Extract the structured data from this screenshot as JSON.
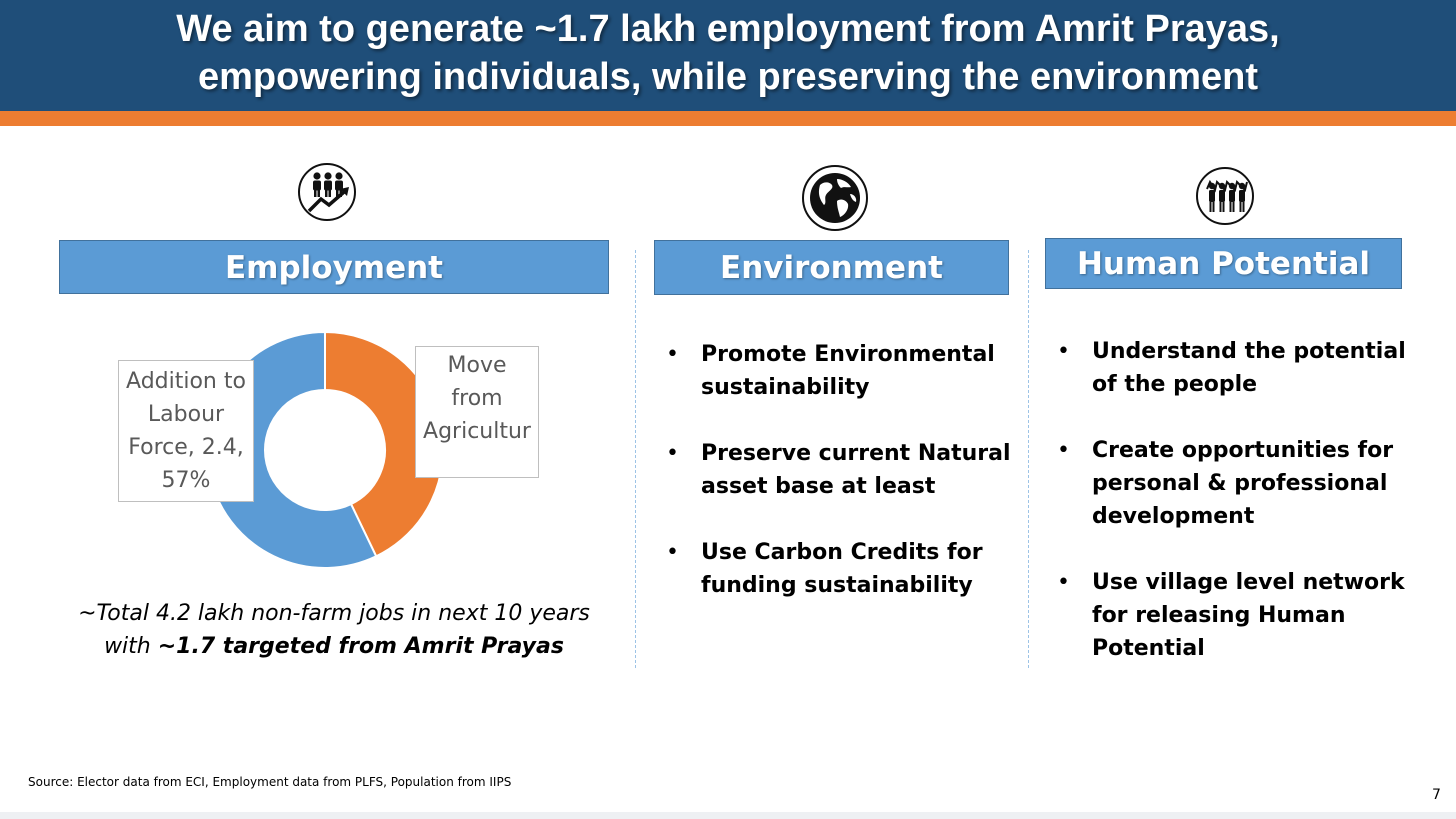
{
  "slide": {
    "title_line1": "We aim to generate ~1.7 lakh employment from Amrit Prayas,",
    "title_line2": "empowering individuals, while preserving the environment",
    "page_number": "7",
    "source": "Source: Elector data from ECI, Employment data from PLFS, Population from IIPS"
  },
  "colors": {
    "title_bg": "#1f4e79",
    "accent_stripe": "#ed7d31",
    "pill_bg": "#5b9bd5",
    "donut_blue": "#5b9bd5",
    "donut_orange": "#ed7d31"
  },
  "columns": [
    {
      "icon": "people-growth-icon",
      "heading": "Employment"
    },
    {
      "icon": "globe-icon",
      "heading": "Environment",
      "bullets": [
        {
          "line1": "Promote Environmental",
          "line2": "sustainability"
        },
        {
          "line1": "Preserve current Natural",
          "line2": "asset base at least"
        },
        {
          "line1": "Use Carbon Credits for",
          "line2": "funding sustainability"
        }
      ]
    },
    {
      "icon": "community-icon",
      "heading": "Human Potential",
      "bullets": [
        {
          "line1": "Understand the potential",
          "line2": "of the people"
        },
        {
          "line1": "Create opportunities for",
          "line2": "personal & professional",
          "line3": "development"
        },
        {
          "line1": "Use village level network",
          "line2": "for releasing Human",
          "line3": "Potential"
        }
      ]
    }
  ],
  "chart_data": {
    "type": "pie",
    "series": [
      {
        "name": "Addition to Labour Force",
        "value": 2.4,
        "percent": 57,
        "color": "#5b9bd5"
      },
      {
        "name": "Move from Agriculture",
        "value": 1.8,
        "percent": 43,
        "color": "#ed7d31"
      }
    ],
    "labels": {
      "blue": [
        "Addition to",
        "Labour",
        "Force, 2.4,",
        "57%"
      ],
      "orange": [
        "Move",
        "from",
        "Agricultur"
      ]
    }
  },
  "employment_caption": {
    "line1": "~Total 4.2 lakh non-farm jobs in next 10 years",
    "line2_prefix": "with ",
    "line2_bold": "~1.7 targeted from Amrit Prayas"
  }
}
